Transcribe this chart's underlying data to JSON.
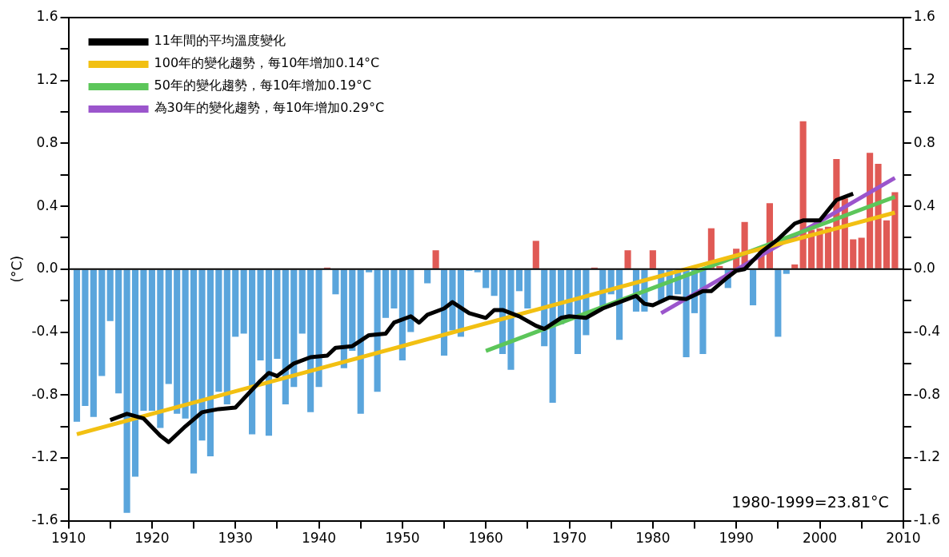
{
  "chart_data": {
    "type": "bar",
    "ylabel": "(°C)",
    "legend": "top left",
    "grid": false,
    "xlim": [
      1910,
      2010
    ],
    "xticks": [
      1910,
      {
        "value": 1915,
        "label": null
      },
      1920,
      {
        "value": 1925,
        "label": null
      },
      1930,
      {
        "value": 1935,
        "label": null
      },
      1940,
      {
        "value": 1945,
        "label": null
      },
      1950,
      {
        "value": 1955,
        "label": null
      },
      1960,
      {
        "value": 1965,
        "label": null
      },
      1970,
      {
        "value": 1975,
        "label": null
      },
      1980,
      {
        "value": 1985,
        "label": null
      },
      1990,
      {
        "value": 1995,
        "label": null
      },
      2000,
      {
        "value": 2005,
        "label": null
      },
      2010
    ],
    "ylim": [
      -1.6,
      1.6
    ],
    "yticks": [
      -1.6,
      {
        "value": -1.4,
        "label": null
      },
      -1.2,
      {
        "value": -1,
        "label": null
      },
      -0.8,
      {
        "value": -0.6,
        "label": null
      },
      -0.4,
      {
        "value": -0.2,
        "label": null
      },
      {
        "value": 0,
        "label": "0.0"
      },
      {
        "value": 0.2,
        "label": null
      },
      0.4,
      {
        "value": 0.6,
        "label": null
      },
      0.8,
      {
        "value": 1,
        "label": null
      },
      1.2,
      {
        "value": 1.4,
        "label": null
      },
      1.6
    ],
    "y2lim": [
      -1.6,
      1.6
    ],
    "y2ticks": [
      -1.6,
      {
        "value": -1.4,
        "label": null
      },
      -1.2,
      {
        "value": -1,
        "label": null
      },
      -0.8,
      {
        "value": -0.6,
        "label": null
      },
      -0.4,
      {
        "value": -0.2,
        "label": null
      },
      {
        "value": 0,
        "label": "0.0"
      },
      {
        "value": 0.2,
        "label": null
      },
      0.4,
      {
        "value": 0.6,
        "label": null
      },
      0.8,
      {
        "value": 1,
        "label": null
      },
      1.2,
      {
        "value": 1.4,
        "label": null
      },
      1.6
    ],
    "ref_lines": [
      {
        "axis": "y",
        "value": 0,
        "color": "#000000"
      }
    ],
    "annotations": [
      "1980-1999=23.81°C"
    ],
    "series": [
      {
        "x": [
          1911,
          1912,
          1913,
          1914,
          1915,
          1916,
          1917,
          1918,
          1919,
          1920,
          1921,
          1922,
          1923,
          1924,
          1925,
          1926,
          1927,
          1928,
          1929,
          1930,
          1931,
          1932,
          1933,
          1934,
          1935,
          1936,
          1937,
          1938,
          1939,
          1940,
          1941,
          1942,
          1943,
          1944,
          1945,
          1946,
          1947,
          1948,
          1949,
          1950,
          1951,
          1952,
          1953,
          1954,
          1955,
          1956,
          1957,
          1958,
          1959,
          1960,
          1961,
          1962,
          1963,
          1964,
          1965,
          1966,
          1967,
          1968,
          1969,
          1970,
          1971,
          1972,
          1973,
          1974,
          1975,
          1976,
          1977,
          1978,
          1979,
          1980,
          1981,
          1982,
          1983,
          1984,
          1985,
          1986,
          1987,
          1988,
          1989,
          1990,
          1991,
          1992,
          1993,
          1994,
          1995,
          1996,
          1997,
          1998,
          1999,
          2000,
          2001,
          2002,
          2003,
          2004,
          2005,
          2006,
          2007,
          2008,
          2009
        ],
        "values": [
          -0.97,
          -0.87,
          -0.94,
          -0.68,
          -0.33,
          -0.79,
          -1.55,
          -1.32,
          -0.9,
          -0.9,
          -1.01,
          -0.73,
          -0.92,
          -0.95,
          -1.3,
          -1.09,
          -1.19,
          -0.78,
          -0.86,
          -0.43,
          -0.41,
          -1.05,
          -0.58,
          -1.06,
          -0.57,
          -0.86,
          -0.75,
          -0.41,
          -0.91,
          -0.75,
          0.01,
          -0.16,
          -0.63,
          -0.52,
          -0.92,
          -0.02,
          -0.78,
          -0.31,
          -0.25,
          -0.58,
          -0.4,
          0,
          -0.09,
          0.12,
          -0.55,
          -0.39,
          -0.43,
          -0.01,
          -0.02,
          -0.12,
          -0.17,
          -0.54,
          -0.64,
          -0.14,
          -0.25,
          0.18,
          -0.49,
          -0.85,
          -0.35,
          -0.3,
          -0.54,
          -0.42,
          0.01,
          -0.25,
          -0.16,
          -0.45,
          0.12,
          -0.27,
          -0.27,
          0.12,
          -0.21,
          -0.18,
          -0.16,
          -0.56,
          -0.28,
          -0.54,
          0.26,
          0.02,
          -0.12,
          0.13,
          0.3,
          -0.23,
          0.12,
          0.42,
          -0.43,
          -0.03,
          0.03,
          0.94,
          0.25,
          0.26,
          0.27,
          0.7,
          0.45,
          0.19,
          0.2,
          0.74,
          0.67,
          0.31,
          0.49
        ],
        "colors": [
          "#5aa5dc",
          "#5aa5dc",
          "#5aa5dc",
          "#5aa5dc",
          "#5aa5dc",
          "#5aa5dc",
          "#5aa5dc",
          "#5aa5dc",
          "#5aa5dc",
          "#5aa5dc",
          "#5aa5dc",
          "#5aa5dc",
          "#5aa5dc",
          "#5aa5dc",
          "#5aa5dc",
          "#5aa5dc",
          "#5aa5dc",
          "#5aa5dc",
          "#5aa5dc",
          "#5aa5dc",
          "#5aa5dc",
          "#5aa5dc",
          "#5aa5dc",
          "#5aa5dc",
          "#5aa5dc",
          "#5aa5dc",
          "#5aa5dc",
          "#5aa5dc",
          "#5aa5dc",
          "#5aa5dc",
          "#e05a55",
          "#5aa5dc",
          "#5aa5dc",
          "#5aa5dc",
          "#5aa5dc",
          "#5aa5dc",
          "#5aa5dc",
          "#5aa5dc",
          "#5aa5dc",
          "#5aa5dc",
          "#5aa5dc",
          "#5aa5dc",
          "#5aa5dc",
          "#e05a55",
          "#5aa5dc",
          "#5aa5dc",
          "#5aa5dc",
          "#5aa5dc",
          "#5aa5dc",
          "#5aa5dc",
          "#5aa5dc",
          "#5aa5dc",
          "#5aa5dc",
          "#5aa5dc",
          "#5aa5dc",
          "#e05a55",
          "#5aa5dc",
          "#5aa5dc",
          "#5aa5dc",
          "#5aa5dc",
          "#5aa5dc",
          "#5aa5dc",
          "#e05a55",
          "#5aa5dc",
          "#5aa5dc",
          "#5aa5dc",
          "#e05a55",
          "#5aa5dc",
          "#5aa5dc",
          "#e05a55",
          "#5aa5dc",
          "#5aa5dc",
          "#5aa5dc",
          "#5aa5dc",
          "#5aa5dc",
          "#5aa5dc",
          "#e05a55",
          "#e05a55",
          "#5aa5dc",
          "#e05a55",
          "#e05a55",
          "#5aa5dc",
          "#e05a55",
          "#e05a55",
          "#5aa5dc",
          "#5aa5dc",
          "#e05a55",
          "#e05a55",
          "#e05a55",
          "#e05a55",
          "#e05a55",
          "#e05a55",
          "#e05a55",
          "#e05a55",
          "#e05a55",
          "#e05a55",
          "#e05a55",
          "#e05a55",
          "#e05a55"
        ]
      },
      {
        "type": "line",
        "name": "11年間的平均溫度變化",
        "color": "#000000",
        "x": [
          1915,
          1917,
          1919,
          1921,
          1922,
          1924,
          1926,
          1928,
          1930,
          1933,
          1934,
          1935,
          1937,
          1939,
          1941,
          1942,
          1944,
          1946,
          1948,
          1949,
          1951,
          1952,
          1953,
          1955,
          1956,
          1958,
          1960,
          1961,
          1962,
          1964,
          1966,
          1967,
          1969,
          1970,
          1972,
          1974,
          1976,
          1978,
          1979,
          1980,
          1982,
          1984,
          1986,
          1987,
          1989,
          1990,
          1991,
          1993,
          1995,
          1997,
          1998,
          2000,
          2002,
          2004
        ],
        "values": [
          -0.96,
          -0.92,
          -0.95,
          -1.06,
          -1.1,
          -1.0,
          -0.91,
          -0.89,
          -0.88,
          -0.71,
          -0.66,
          -0.68,
          -0.6,
          -0.56,
          -0.55,
          -0.5,
          -0.49,
          -0.42,
          -0.41,
          -0.34,
          -0.3,
          -0.34,
          -0.29,
          -0.25,
          -0.21,
          -0.28,
          -0.31,
          -0.26,
          -0.26,
          -0.3,
          -0.36,
          -0.38,
          -0.31,
          -0.3,
          -0.31,
          -0.25,
          -0.21,
          -0.17,
          -0.22,
          -0.23,
          -0.18,
          -0.19,
          -0.14,
          -0.14,
          -0.05,
          -0.01,
          0,
          0.11,
          0.19,
          0.29,
          0.31,
          0.31,
          0.44,
          0.48
        ]
      },
      {
        "type": "line",
        "name": "100年的變化趨勢，每10年增加0.14°C",
        "color": "#f2c012",
        "x": [
          1911,
          2009
        ],
        "values": [
          -1.05,
          0.36
        ]
      },
      {
        "type": "line",
        "name": "50年的變化趨勢，每10年增加0.19°C",
        "color": "#5cc65a",
        "x": [
          1960,
          2009
        ],
        "values": [
          -0.52,
          0.46
        ]
      },
      {
        "type": "line",
        "name": "為30年的變化趨勢，每10年增加0.29°C",
        "color": "#9b55cc",
        "x": [
          1981,
          2009
        ],
        "values": [
          -0.28,
          0.58
        ]
      }
    ]
  }
}
